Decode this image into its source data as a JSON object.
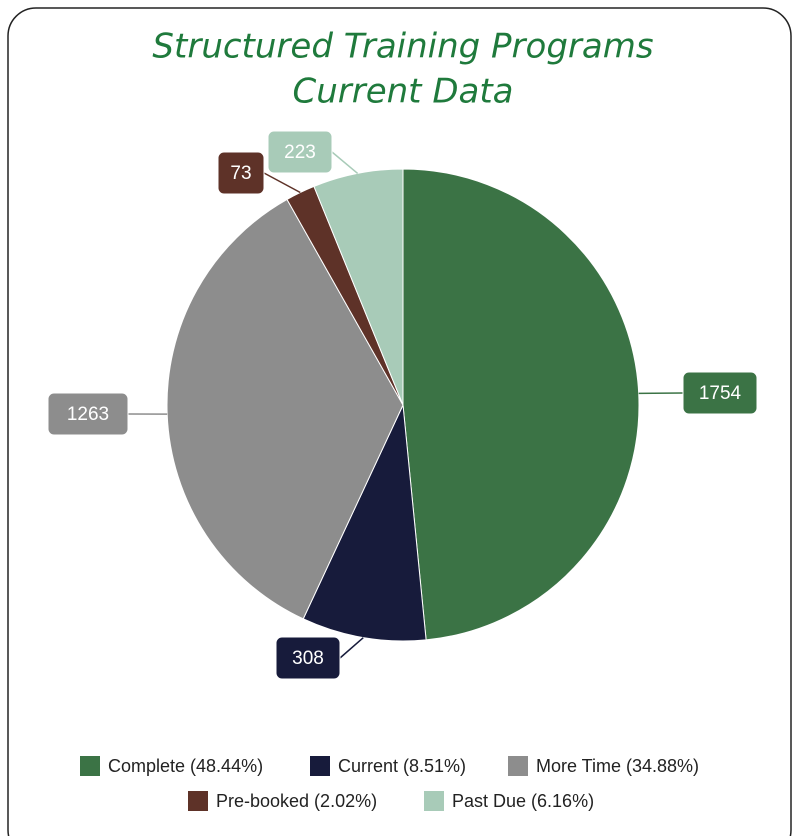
{
  "chart_data": {
    "type": "pie",
    "title": "Structured Training Programs",
    "subtitle": "Current Data",
    "categories": [
      "Complete (48.44%)",
      "Current (8.51%)",
      "More Time (34.88%)",
      "Pre-booked (2.02%)",
      "Past Due (6.16%)"
    ],
    "values": [
      1754,
      308,
      1263,
      73,
      223
    ],
    "colors": [
      "#3b7345",
      "#171b3b",
      "#8d8d8d",
      "#5e3228",
      "#a8cbb8"
    ],
    "legend": "bottom"
  }
}
